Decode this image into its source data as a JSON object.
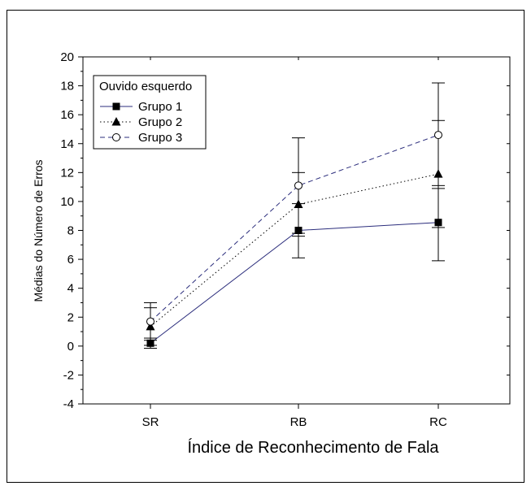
{
  "chart_data": {
    "type": "line",
    "title": "",
    "xlabel": "Índice de Reconhecimento de Fala",
    "ylabel": "Médias do Número de Erros",
    "categories": [
      "SR",
      "RB",
      "RC"
    ],
    "ylim": [
      -4,
      20
    ],
    "yticks": [
      "-4",
      "-2",
      "0",
      "2",
      "4",
      "6",
      "8",
      "10",
      "12",
      "14",
      "16",
      "18",
      "20"
    ],
    "grid": false,
    "legend": {
      "title": "Ouvido esquerdo",
      "placement": "top-left"
    },
    "series": [
      {
        "name": "Grupo 1",
        "marker": "square-filled",
        "line_style": "solid",
        "color": "#2b2d7c",
        "values": [
          0.2,
          8.0,
          8.55
        ],
        "error_low": [
          -0.15,
          6.1,
          5.9
        ],
        "error_high": [
          0.55,
          9.85,
          11.1
        ]
      },
      {
        "name": "Grupo 2",
        "marker": "triangle-filled",
        "line_style": "dotted",
        "color": "#000000",
        "values": [
          1.35,
          9.8,
          11.9
        ],
        "error_low": [
          0.05,
          7.6,
          8.2
        ],
        "error_high": [
          2.65,
          12.0,
          15.6
        ]
      },
      {
        "name": "Grupo 3",
        "marker": "circle-open",
        "line_style": "dashed",
        "color": "#2b2d7c",
        "values": [
          1.7,
          11.1,
          14.6
        ],
        "error_low": [
          0.4,
          7.8,
          10.9
        ],
        "error_high": [
          3.0,
          14.4,
          18.2
        ]
      }
    ]
  }
}
